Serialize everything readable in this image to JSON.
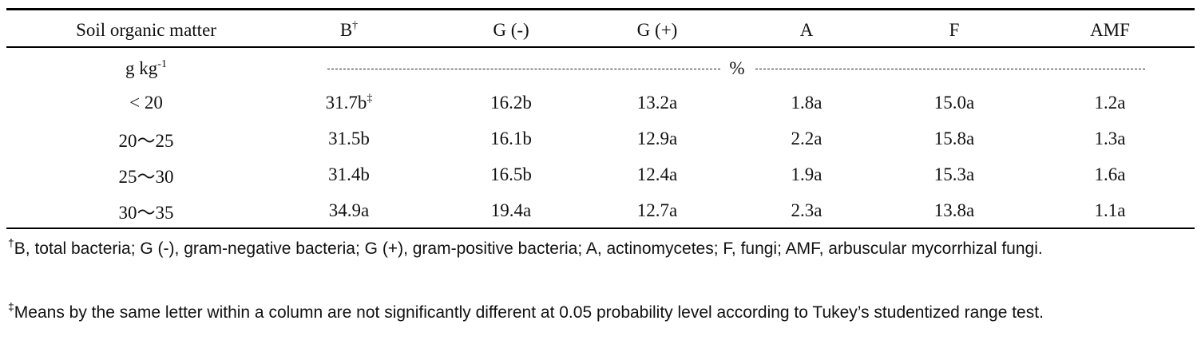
{
  "table": {
    "header": {
      "cells": [
        "Soil organic matter",
        "B",
        "G (-)",
        "G (+)",
        "A",
        "F",
        "AMF"
      ],
      "note": "†"
    },
    "units": {
      "label": "g kg",
      "exponent": "-1",
      "value": "%"
    },
    "rows": [
      [
        "< 20",
        "31.7b",
        "16.2b",
        "13.2a",
        "1.8a",
        "15.0a",
        "1.2a"
      ],
      [
        "20～25",
        "31.5b",
        "16.1b",
        "12.9a",
        "2.2a",
        "15.8a",
        "1.3a"
      ],
      [
        "25～30",
        "31.4b",
        "16.5b",
        "12.4a",
        "1.9a",
        "15.3a",
        "1.6a"
      ],
      [
        "30～35",
        "34.9a",
        "19.4a",
        "12.7a",
        "2.3a",
        "13.8a",
        "1.1a"
      ]
    ],
    "rows_note": "‡"
  },
  "footnotes": [
    {
      "symbol": "†",
      "text": "B, total bacteria; G (-), gram-negative bacteria; G (+), gram-positive bacteria; A, actinomycetes; F, fungi; AMF, arbuscular mycorrhizal fungi."
    },
    {
      "symbol": "‡",
      "text": "Means by the same letter within a column are not significantly different at 0.05 probability level according to Tukey’s studentized range test."
    }
  ]
}
